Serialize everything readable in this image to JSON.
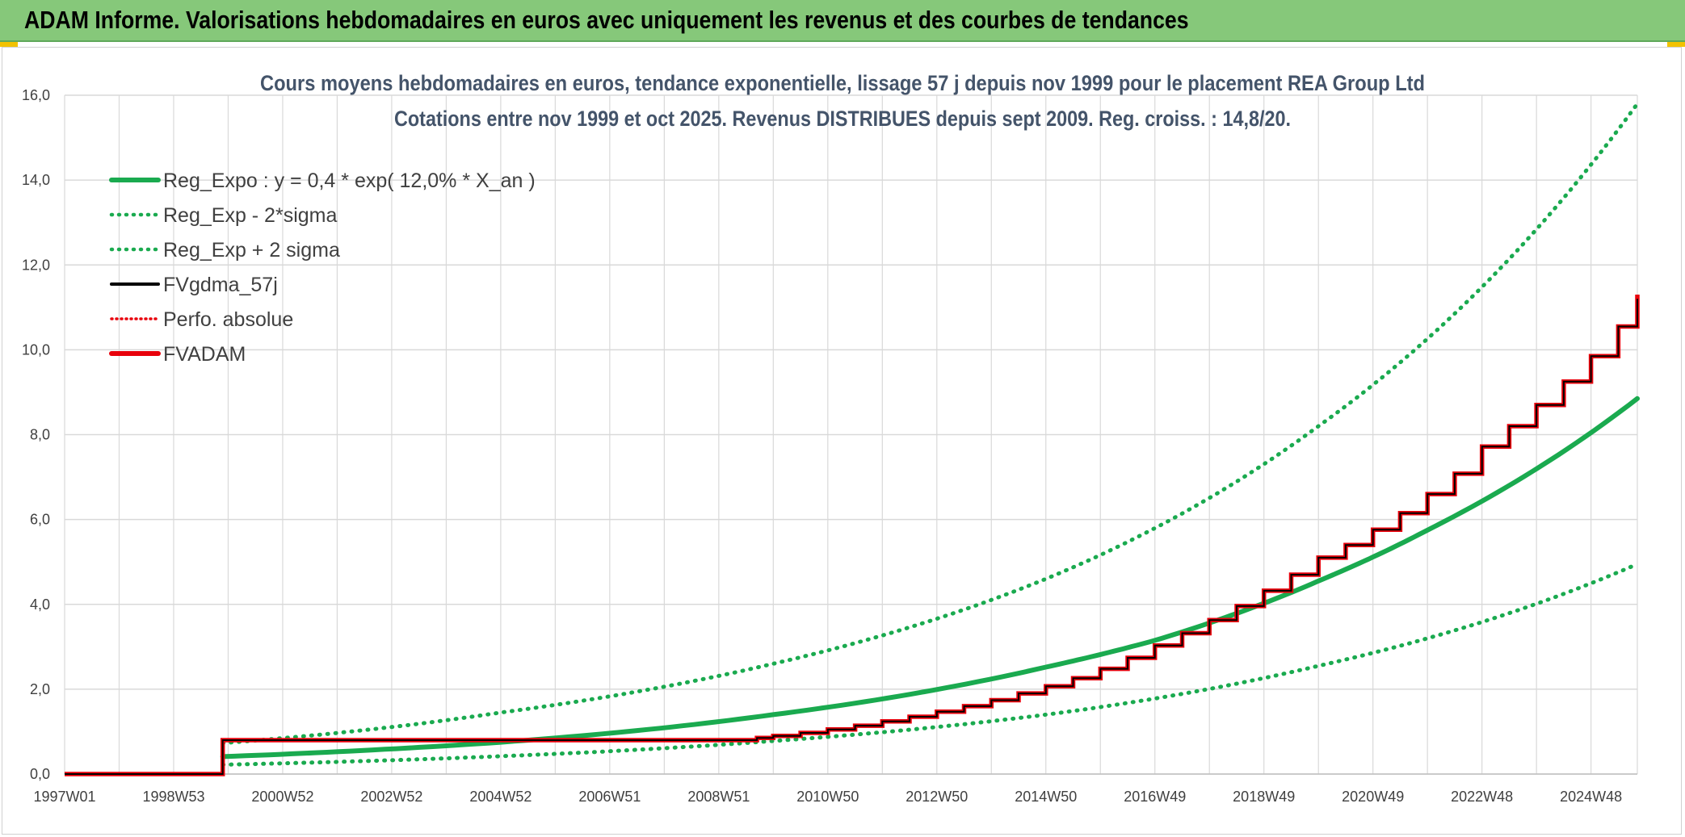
{
  "header": {
    "title": "ADAM Informe. Valorisations hebdomadaires en euros avec uniquement les revenus et des courbes de tendances"
  },
  "colors": {
    "header_bg": "#86c87a",
    "accent_corner": "#f2c200",
    "green_series": "#1aaa4f",
    "black_series": "#000000",
    "red_series": "#e8000b",
    "grid": "#d9d9d9",
    "title_text": "#44546a"
  },
  "chart_data": {
    "type": "line",
    "title": "Cours moyens hebdomadaires en euros, tendance exponentielle, lissage 57 j depuis nov 1999 pour le placement REA Group Ltd",
    "subtitle": "Cotations entre nov 1999 et oct 2025. Revenus DISTRIBUES depuis sept 2009. Reg. croiss. : 14,8/20.",
    "x_range_years": [
      1997.0,
      2025.85
    ],
    "xlim": [
      "1997W01",
      "2025W44"
    ],
    "x_ticks": [
      {
        "label": "1997W01",
        "year": 1997.0
      },
      {
        "label": "1998W53",
        "year": 1999.0
      },
      {
        "label": "2000W52",
        "year": 2001.0
      },
      {
        "label": "2002W52",
        "year": 2003.0
      },
      {
        "label": "2004W52",
        "year": 2005.0
      },
      {
        "label": "2006W51",
        "year": 2007.0
      },
      {
        "label": "2008W51",
        "year": 2009.0
      },
      {
        "label": "2010W50",
        "year": 2011.0
      },
      {
        "label": "2012W50",
        "year": 2013.0
      },
      {
        "label": "2014W50",
        "year": 2015.0
      },
      {
        "label": "2016W49",
        "year": 2017.0
      },
      {
        "label": "2018W49",
        "year": 2019.0
      },
      {
        "label": "2020W49",
        "year": 2021.0
      },
      {
        "label": "2022W48",
        "year": 2023.0
      },
      {
        "label": "2024W48",
        "year": 2025.0
      }
    ],
    "ylim": [
      0,
      16
    ],
    "y_ticks": [
      "0,0",
      "2,0",
      "4,0",
      "6,0",
      "8,0",
      "10,0",
      "12,0",
      "14,0",
      "16,0"
    ],
    "y_tick_values": [
      0,
      2,
      4,
      6,
      8,
      10,
      12,
      14,
      16
    ],
    "legend": [
      {
        "label": "Reg_Expo : y = 0,4 * exp( 12,0% *  X_an )",
        "color": "#1aaa4f",
        "style": "solid-thick"
      },
      {
        "label": "Reg_Exp - 2*sigma",
        "color": "#1aaa4f",
        "style": "dotted"
      },
      {
        "label": "Reg_Exp + 2 sigma",
        "color": "#1aaa4f",
        "style": "dotted"
      },
      {
        "label": "FVgdma_57j",
        "color": "#000000",
        "style": "solid"
      },
      {
        "label": "Perfo. absolue",
        "color": "#e8000b",
        "style": "dotted"
      },
      {
        "label": "FVADAM",
        "color": "#e8000b",
        "style": "solid-thick"
      }
    ],
    "series": [
      {
        "name": "Reg_Expo",
        "style": "solid-thick",
        "start_year": 1999.9,
        "points": [
          [
            1999.9,
            0.41
          ],
          [
            2005.0,
            0.75
          ],
          [
            2010.0,
            1.4
          ],
          [
            2015.0,
            2.52
          ],
          [
            2017.0,
            3.15
          ],
          [
            2020.0,
            4.55
          ],
          [
            2022.0,
            5.75
          ],
          [
            2025.85,
            8.85
          ]
        ]
      },
      {
        "name": "Reg_Exp - 2*sigma",
        "style": "dotted",
        "points": [
          [
            1999.9,
            0.22
          ],
          [
            2005.0,
            0.42
          ],
          [
            2010.0,
            0.78
          ],
          [
            2015.0,
            1.4
          ],
          [
            2020.0,
            2.55
          ],
          [
            2025.85,
            4.95
          ]
        ]
      },
      {
        "name": "Reg_Exp + 2 sigma",
        "style": "dotted",
        "points": [
          [
            1999.9,
            0.73
          ],
          [
            2005.0,
            1.45
          ],
          [
            2010.0,
            2.6
          ],
          [
            2015.0,
            4.6
          ],
          [
            2020.0,
            8.2
          ],
          [
            2025.85,
            15.8
          ]
        ]
      },
      {
        "name": "FVgdma_57j",
        "style": "solid",
        "steps": [
          [
            1997.0,
            0.0
          ],
          [
            1999.9,
            0.8
          ],
          [
            2004.0,
            0.8
          ],
          [
            2009.7,
            0.85
          ],
          [
            2010.0,
            0.9
          ],
          [
            2010.5,
            0.97
          ],
          [
            2011.0,
            1.05
          ],
          [
            2011.5,
            1.14
          ],
          [
            2012.0,
            1.24
          ],
          [
            2012.5,
            1.35
          ],
          [
            2013.0,
            1.47
          ],
          [
            2013.5,
            1.6
          ],
          [
            2014.0,
            1.74
          ],
          [
            2014.5,
            1.9
          ],
          [
            2015.0,
            2.07
          ],
          [
            2015.5,
            2.26
          ],
          [
            2016.0,
            2.48
          ],
          [
            2016.5,
            2.74
          ],
          [
            2017.0,
            3.03
          ],
          [
            2017.5,
            3.32
          ],
          [
            2018.0,
            3.63
          ],
          [
            2018.5,
            3.96
          ],
          [
            2019.0,
            4.32
          ],
          [
            2019.5,
            4.7
          ],
          [
            2020.0,
            5.1
          ],
          [
            2020.5,
            5.4
          ],
          [
            2021.0,
            5.76
          ],
          [
            2021.5,
            6.15
          ],
          [
            2022.0,
            6.6
          ],
          [
            2022.5,
            7.08
          ],
          [
            2023.0,
            7.72
          ],
          [
            2023.5,
            8.2
          ],
          [
            2024.0,
            8.7
          ],
          [
            2024.5,
            9.25
          ],
          [
            2025.0,
            9.85
          ],
          [
            2025.5,
            10.55
          ],
          [
            2025.85,
            11.2
          ]
        ]
      },
      {
        "name": "Perfo. absolue",
        "style": "dotted",
        "note": "coincides with FVADAM"
      },
      {
        "name": "FVADAM",
        "style": "solid-thick-step",
        "steps": [
          [
            1997.0,
            0.0
          ],
          [
            1999.9,
            0.8
          ],
          [
            2004.0,
            0.8
          ],
          [
            2009.7,
            0.85
          ],
          [
            2010.0,
            0.9
          ],
          [
            2010.5,
            0.97
          ],
          [
            2011.0,
            1.05
          ],
          [
            2011.5,
            1.14
          ],
          [
            2012.0,
            1.24
          ],
          [
            2012.5,
            1.35
          ],
          [
            2013.0,
            1.47
          ],
          [
            2013.5,
            1.6
          ],
          [
            2014.0,
            1.74
          ],
          [
            2014.5,
            1.9
          ],
          [
            2015.0,
            2.07
          ],
          [
            2015.5,
            2.26
          ],
          [
            2016.0,
            2.48
          ],
          [
            2016.5,
            2.74
          ],
          [
            2017.0,
            3.03
          ],
          [
            2017.5,
            3.32
          ],
          [
            2018.0,
            3.63
          ],
          [
            2018.5,
            3.96
          ],
          [
            2019.0,
            4.32
          ],
          [
            2019.5,
            4.7
          ],
          [
            2020.0,
            5.1
          ],
          [
            2020.5,
            5.4
          ],
          [
            2021.0,
            5.76
          ],
          [
            2021.5,
            6.15
          ],
          [
            2022.0,
            6.6
          ],
          [
            2022.5,
            7.08
          ],
          [
            2023.0,
            7.72
          ],
          [
            2023.5,
            8.2
          ],
          [
            2024.0,
            8.7
          ],
          [
            2024.5,
            9.25
          ],
          [
            2025.0,
            9.85
          ],
          [
            2025.5,
            10.55
          ],
          [
            2025.85,
            11.3
          ]
        ]
      }
    ]
  }
}
